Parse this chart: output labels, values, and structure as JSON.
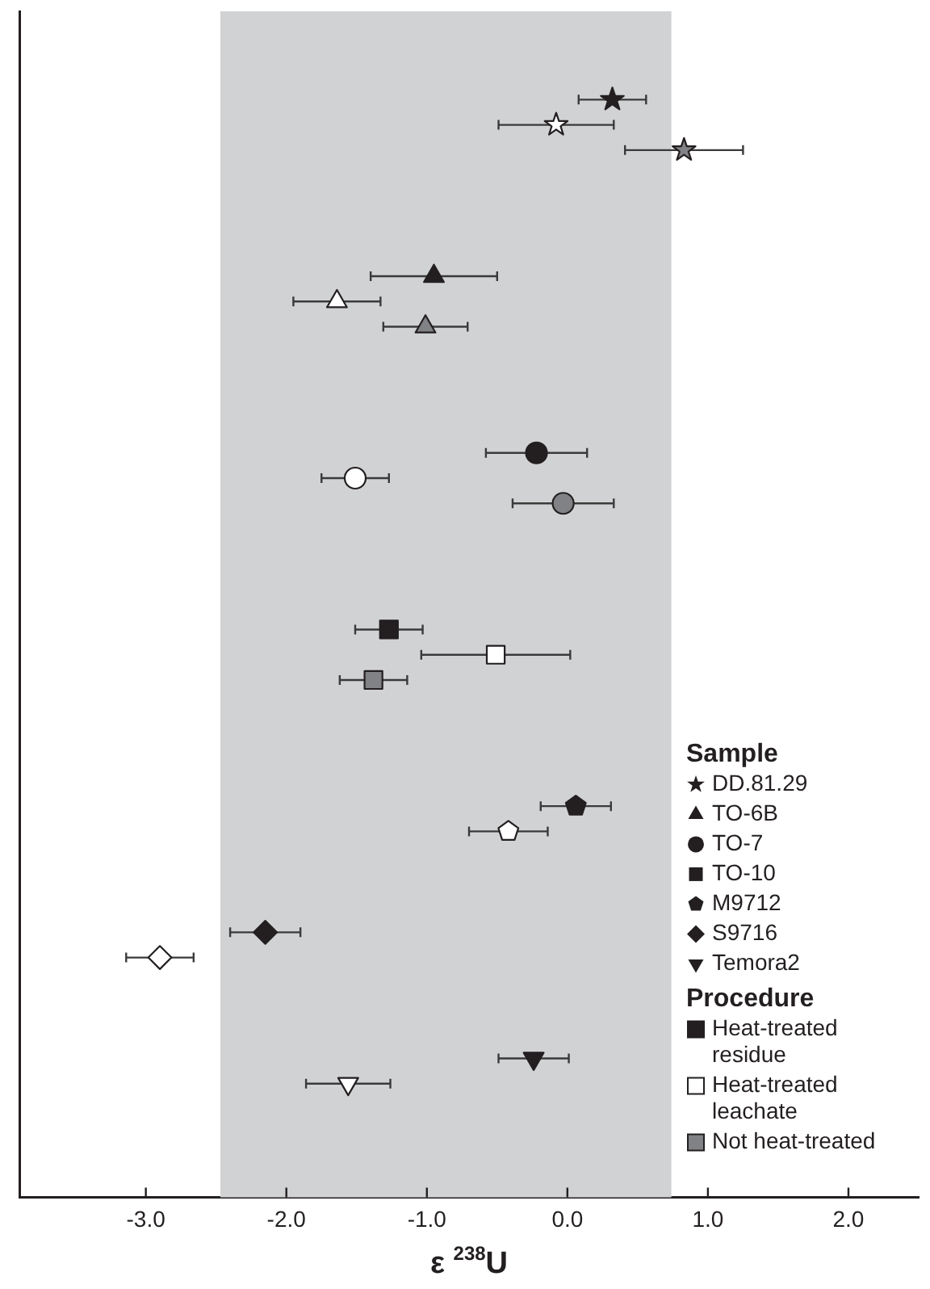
{
  "chart_data": {
    "type": "scatter",
    "orientation": "horizontal",
    "xlabel": "ε $^{238}$U",
    "legend_title": "Sample",
    "legend": "bottom right",
    "tick_labels": "x",
    "categories": [
      null,
      null,
      null,
      null,
      null,
      null,
      null,
      null,
      null,
      null,
      null,
      null,
      null,
      null,
      null,
      null,
      null,
      null,
      null,
      null,
      null,
      null,
      null,
      null,
      null,
      null,
      null,
      null,
      null,
      null,
      null,
      null,
      null,
      null,
      null,
      null,
      null,
      null,
      null,
      null,
      null,
      null,
      null,
      null,
      null,
      null,
      null
    ],
    "xlim": [
      -3.9,
      2.5
    ],
    "xticks": [
      {
        "value": -3,
        "label": "-3.0"
      },
      {
        "value": -2,
        "label": "-2.0"
      },
      {
        "value": -1,
        "label": "-1.0"
      },
      {
        "value": 0,
        "label": "0.0"
      },
      {
        "value": 1,
        "label": "1.0"
      },
      {
        "value": 2,
        "label": "2.0"
      }
    ],
    "bands": [
      {
        "axis": "x",
        "from": -2.47,
        "to": 0.74,
        "color": "#d1d2d4"
      }
    ],
    "annotations": [
      "Procedure",
      "Heat-treated residue",
      "Heat-treated leachate",
      "Not heat-treated"
    ],
    "series": [
      {
        "name": "DD.81.29",
        "color": "#231f20",
        "marker": "star",
        "values": [
          null,
          null,
          null,
          0.32,
          -0.08,
          0.83,
          null,
          null,
          null,
          null,
          null,
          null,
          null,
          null,
          null,
          null,
          null,
          null,
          null,
          null,
          null,
          null,
          null,
          null,
          null,
          null,
          null,
          null,
          null,
          null,
          null,
          null,
          null,
          null,
          null,
          null,
          null,
          null,
          null,
          null,
          null,
          null,
          null,
          null,
          null,
          null,
          null
        ],
        "errors": [
          null,
          null,
          null,
          0.24,
          0.41,
          0.42,
          null,
          null,
          null,
          null,
          null,
          null,
          null,
          null,
          null,
          null,
          null,
          null,
          null,
          null,
          null,
          null,
          null,
          null,
          null,
          null,
          null,
          null,
          null,
          null,
          null,
          null,
          null,
          null,
          null,
          null,
          null,
          null,
          null,
          null,
          null,
          null,
          null,
          null,
          null,
          null,
          null
        ],
        "colors": [
          null,
          null,
          null,
          "#231f20",
          "#ffffff",
          "#808285",
          null,
          null,
          null,
          null,
          null,
          null,
          null,
          null,
          null,
          null,
          null,
          null,
          null,
          null,
          null,
          null,
          null,
          null,
          null,
          null,
          null,
          null,
          null,
          null,
          null,
          null,
          null,
          null,
          null,
          null,
          null,
          null,
          null,
          null,
          null,
          null,
          null,
          null,
          null,
          null,
          null
        ]
      },
      {
        "name": "TO-6B",
        "color": "#231f20",
        "marker": "triangle",
        "values": [
          null,
          null,
          null,
          null,
          null,
          null,
          null,
          null,
          null,
          null,
          -0.95,
          -1.64,
          -1.01,
          null,
          null,
          null,
          null,
          null,
          null,
          null,
          null,
          null,
          null,
          null,
          null,
          null,
          null,
          null,
          null,
          null,
          null,
          null,
          null,
          null,
          null,
          null,
          null,
          null,
          null,
          null,
          null,
          null,
          null,
          null,
          null,
          null,
          null
        ],
        "errors": [
          null,
          null,
          null,
          null,
          null,
          null,
          null,
          null,
          null,
          null,
          0.45,
          0.31,
          0.3,
          null,
          null,
          null,
          null,
          null,
          null,
          null,
          null,
          null,
          null,
          null,
          null,
          null,
          null,
          null,
          null,
          null,
          null,
          null,
          null,
          null,
          null,
          null,
          null,
          null,
          null,
          null,
          null,
          null,
          null,
          null,
          null,
          null,
          null
        ],
        "colors": [
          null,
          null,
          null,
          null,
          null,
          null,
          null,
          null,
          null,
          null,
          "#231f20",
          "#ffffff",
          "#808285",
          null,
          null,
          null,
          null,
          null,
          null,
          null,
          null,
          null,
          null,
          null,
          null,
          null,
          null,
          null,
          null,
          null,
          null,
          null,
          null,
          null,
          null,
          null,
          null,
          null,
          null,
          null,
          null,
          null,
          null,
          null,
          null,
          null,
          null
        ]
      },
      {
        "name": "TO-7",
        "color": "#231f20",
        "marker": "circle",
        "values": [
          null,
          null,
          null,
          null,
          null,
          null,
          null,
          null,
          null,
          null,
          null,
          null,
          null,
          null,
          null,
          null,
          null,
          -0.22,
          -1.51,
          -0.03,
          null,
          null,
          null,
          null,
          null,
          null,
          null,
          null,
          null,
          null,
          null,
          null,
          null,
          null,
          null,
          null,
          null,
          null,
          null,
          null,
          null,
          null,
          null,
          null,
          null,
          null,
          null
        ],
        "errors": [
          null,
          null,
          null,
          null,
          null,
          null,
          null,
          null,
          null,
          null,
          null,
          null,
          null,
          null,
          null,
          null,
          null,
          0.36,
          0.24,
          0.36,
          null,
          null,
          null,
          null,
          null,
          null,
          null,
          null,
          null,
          null,
          null,
          null,
          null,
          null,
          null,
          null,
          null,
          null,
          null,
          null,
          null,
          null,
          null,
          null,
          null,
          null,
          null
        ],
        "colors": [
          null,
          null,
          null,
          null,
          null,
          null,
          null,
          null,
          null,
          null,
          null,
          null,
          null,
          null,
          null,
          null,
          null,
          "#231f20",
          "#ffffff",
          "#808285",
          null,
          null,
          null,
          null,
          null,
          null,
          null,
          null,
          null,
          null,
          null,
          null,
          null,
          null,
          null,
          null,
          null,
          null,
          null,
          null,
          null,
          null,
          null,
          null,
          null,
          null,
          null
        ]
      },
      {
        "name": "TO-10",
        "color": "#231f20",
        "marker": "square",
        "values": [
          null,
          null,
          null,
          null,
          null,
          null,
          null,
          null,
          null,
          null,
          null,
          null,
          null,
          null,
          null,
          null,
          null,
          null,
          null,
          null,
          null,
          null,
          null,
          null,
          -1.27,
          -0.51,
          -1.38,
          null,
          null,
          null,
          null,
          null,
          null,
          null,
          null,
          null,
          null,
          null,
          null,
          null,
          null,
          null,
          null,
          null,
          null,
          null,
          null
        ],
        "errors": [
          null,
          null,
          null,
          null,
          null,
          null,
          null,
          null,
          null,
          null,
          null,
          null,
          null,
          null,
          null,
          null,
          null,
          null,
          null,
          null,
          null,
          null,
          null,
          null,
          0.24,
          0.53,
          0.24,
          null,
          null,
          null,
          null,
          null,
          null,
          null,
          null,
          null,
          null,
          null,
          null,
          null,
          null,
          null,
          null,
          null,
          null,
          null,
          null
        ],
        "colors": [
          null,
          null,
          null,
          null,
          null,
          null,
          null,
          null,
          null,
          null,
          null,
          null,
          null,
          null,
          null,
          null,
          null,
          null,
          null,
          null,
          null,
          null,
          null,
          null,
          "#231f20",
          "#ffffff",
          "#808285",
          null,
          null,
          null,
          null,
          null,
          null,
          null,
          null,
          null,
          null,
          null,
          null,
          null,
          null,
          null,
          null,
          null,
          null,
          null,
          null
        ]
      },
      {
        "name": "M9712",
        "color": "#231f20",
        "values": [
          null,
          null,
          null,
          null,
          null,
          null,
          null,
          null,
          null,
          null,
          null,
          null,
          null,
          null,
          null,
          null,
          null,
          null,
          null,
          null,
          null,
          null,
          null,
          null,
          null,
          null,
          null,
          null,
          null,
          null,
          null,
          0.06,
          -0.42,
          null,
          null,
          null,
          null,
          null,
          null,
          null,
          null,
          null,
          null,
          null,
          null,
          null,
          null
        ],
        "errors": [
          null,
          null,
          null,
          null,
          null,
          null,
          null,
          null,
          null,
          null,
          null,
          null,
          null,
          null,
          null,
          null,
          null,
          null,
          null,
          null,
          null,
          null,
          null,
          null,
          null,
          null,
          null,
          null,
          null,
          null,
          null,
          0.25,
          0.28,
          null,
          null,
          null,
          null,
          null,
          null,
          null,
          null,
          null,
          null,
          null,
          null,
          null,
          null
        ],
        "colors": [
          null,
          null,
          null,
          null,
          null,
          null,
          null,
          null,
          null,
          null,
          null,
          null,
          null,
          null,
          null,
          null,
          null,
          null,
          null,
          null,
          null,
          null,
          null,
          null,
          null,
          null,
          null,
          null,
          null,
          null,
          null,
          "#231f20",
          "#ffffff",
          null,
          null,
          null,
          null,
          null,
          null,
          null,
          null,
          null,
          null,
          null,
          null,
          null,
          null
        ]
      },
      {
        "name": "S9716",
        "color": "#231f20",
        "marker": "diamond",
        "values": [
          null,
          null,
          null,
          null,
          null,
          null,
          null,
          null,
          null,
          null,
          null,
          null,
          null,
          null,
          null,
          null,
          null,
          null,
          null,
          null,
          null,
          null,
          null,
          null,
          null,
          null,
          null,
          null,
          null,
          null,
          null,
          null,
          null,
          null,
          null,
          null,
          -2.15,
          -2.9,
          null,
          null,
          null,
          null,
          null,
          null,
          null,
          null,
          null
        ],
        "errors": [
          null,
          null,
          null,
          null,
          null,
          null,
          null,
          null,
          null,
          null,
          null,
          null,
          null,
          null,
          null,
          null,
          null,
          null,
          null,
          null,
          null,
          null,
          null,
          null,
          null,
          null,
          null,
          null,
          null,
          null,
          null,
          null,
          null,
          null,
          null,
          null,
          0.25,
          0.24,
          null,
          null,
          null,
          null,
          null,
          null,
          null,
          null,
          null
        ],
        "colors": [
          null,
          null,
          null,
          null,
          null,
          null,
          null,
          null,
          null,
          null,
          null,
          null,
          null,
          null,
          null,
          null,
          null,
          null,
          null,
          null,
          null,
          null,
          null,
          null,
          null,
          null,
          null,
          null,
          null,
          null,
          null,
          null,
          null,
          null,
          null,
          null,
          "#231f20",
          "#ffffff",
          null,
          null,
          null,
          null,
          null,
          null,
          null,
          null,
          null
        ]
      },
      {
        "name": "Temora2",
        "color": "#231f20",
        "marker": "triangle-down",
        "values": [
          null,
          null,
          null,
          null,
          null,
          null,
          null,
          null,
          null,
          null,
          null,
          null,
          null,
          null,
          null,
          null,
          null,
          null,
          null,
          null,
          null,
          null,
          null,
          null,
          null,
          null,
          null,
          null,
          null,
          null,
          null,
          null,
          null,
          null,
          null,
          null,
          null,
          null,
          null,
          null,
          null,
          -0.24,
          -1.56,
          null,
          null,
          null,
          null
        ],
        "errors": [
          null,
          null,
          null,
          null,
          null,
          null,
          null,
          null,
          null,
          null,
          null,
          null,
          null,
          null,
          null,
          null,
          null,
          null,
          null,
          null,
          null,
          null,
          null,
          null,
          null,
          null,
          null,
          null,
          null,
          null,
          null,
          null,
          null,
          null,
          null,
          null,
          null,
          null,
          null,
          null,
          null,
          0.25,
          0.3,
          null,
          null,
          null,
          null
        ],
        "colors": [
          null,
          null,
          null,
          null,
          null,
          null,
          null,
          null,
          null,
          null,
          null,
          null,
          null,
          null,
          null,
          null,
          null,
          null,
          null,
          null,
          null,
          null,
          null,
          null,
          null,
          null,
          null,
          null,
          null,
          null,
          null,
          null,
          null,
          null,
          null,
          null,
          null,
          null,
          null,
          null,
          null,
          "#231f20",
          "#ffffff",
          null,
          null,
          null,
          null
        ]
      }
    ]
  }
}
